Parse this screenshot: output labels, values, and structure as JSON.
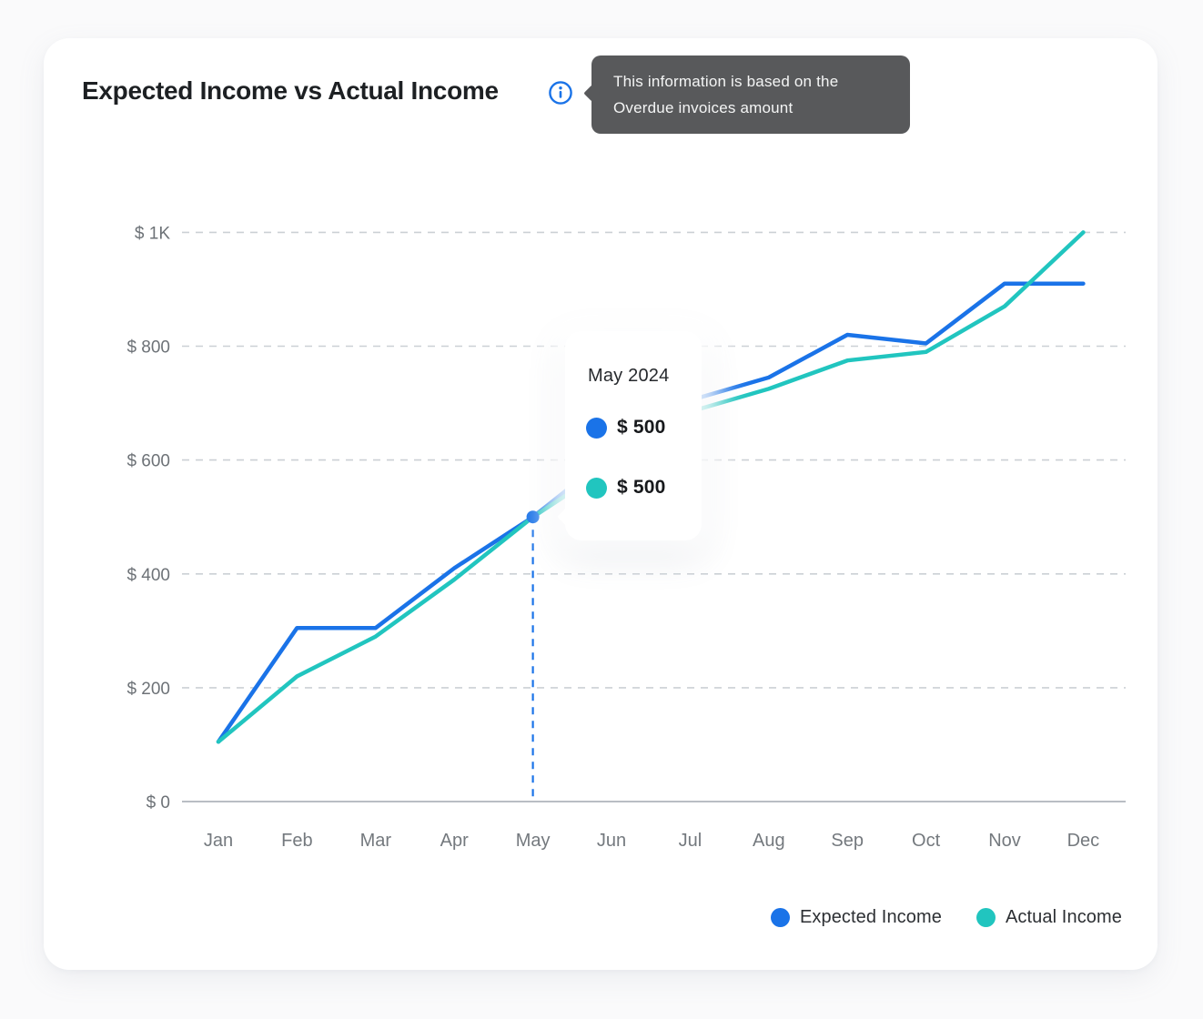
{
  "header": {
    "title": "Expected Income vs Actual Income"
  },
  "info_tooltip": {
    "line1": "This information is based on the",
    "line2": "Overdue invoices amount"
  },
  "chart_data": {
    "type": "line",
    "title": "Expected Income vs Actual Income",
    "categories": [
      "Jan",
      "Feb",
      "Mar",
      "Apr",
      "May",
      "Jun",
      "Jul",
      "Aug",
      "Sep",
      "Oct",
      "Nov",
      "Dec"
    ],
    "series": [
      {
        "name": "Expected Income",
        "color": "#1a73e8",
        "values": [
          105,
          305,
          305,
          410,
          500,
          610,
          705,
          745,
          820,
          805,
          910,
          910
        ]
      },
      {
        "name": "Actual Income",
        "color": "#21c5bf",
        "values": [
          105,
          220,
          290,
          390,
          500,
          590,
          685,
          725,
          775,
          790,
          870,
          1000
        ]
      }
    ],
    "ylim": [
      0,
      1000
    ],
    "y_ticks": [
      {
        "value": 0,
        "label": "$ 0"
      },
      {
        "value": 200,
        "label": "$ 200"
      },
      {
        "value": 400,
        "label": "$ 400"
      },
      {
        "value": 600,
        "label": "$ 600"
      },
      {
        "value": 800,
        "label": "$ 800"
      },
      {
        "value": 1000,
        "label": "$ 1K"
      }
    ],
    "grid": "horizontal-dashed",
    "legend_position": "bottom-right",
    "highlighted_point": {
      "category": "May",
      "index": 4,
      "expected": 500,
      "actual": 500
    }
  },
  "point_tooltip": {
    "title": "May 2024",
    "rows": [
      {
        "series": "Expected Income",
        "color": "#1a73e8",
        "value": "$ 500"
      },
      {
        "series": "Actual Income",
        "color": "#21c5bf",
        "value": "$ 500"
      }
    ]
  },
  "legend": {
    "items": [
      {
        "label": "Expected Income",
        "color": "#1a73e8"
      },
      {
        "label": "Actual Income",
        "color": "#21c5bf"
      }
    ]
  },
  "colors": {
    "accent_blue": "#1a73e8",
    "accent_teal": "#21c5bf",
    "grid": "#cbd0d5",
    "axis": "#b9bec4",
    "tick_text": "#6d7277",
    "month_text": "#74797e",
    "title_text": "#1d2023",
    "info_tooltip_bg": "#58595b",
    "info_tooltip_text": "#f4f5f5",
    "card_bg": "#ffffff",
    "page_bg": "#fafafb"
  }
}
